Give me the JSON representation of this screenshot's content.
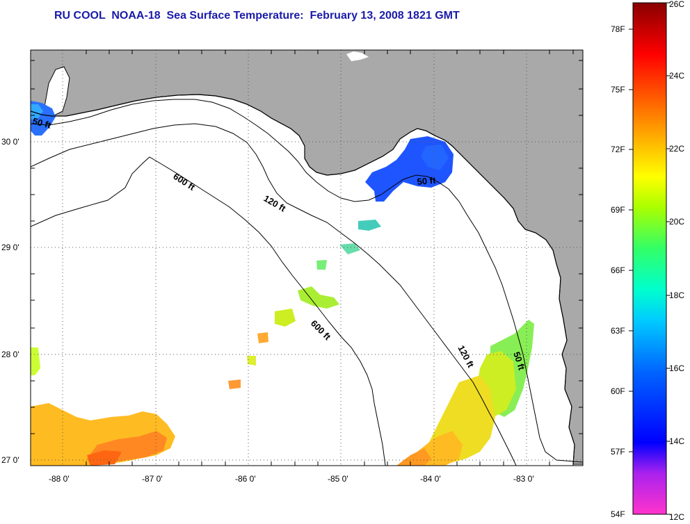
{
  "title": "RU COOL  NOAA-18  Sea Surface Temperature:  February 13, 2008 1821 GMT",
  "map": {
    "lon_range": [
      -88.35,
      -82.5
    ],
    "lat_range": [
      26.93,
      30.9
    ],
    "lon_ticks": [
      {
        "value": -88,
        "label": "-88 0'"
      },
      {
        "value": -87,
        "label": "-87 0'"
      },
      {
        "value": -86,
        "label": "-86 0'"
      },
      {
        "value": -85,
        "label": "-85 0'"
      },
      {
        "value": -84,
        "label": "-84 0'"
      },
      {
        "value": -83,
        "label": "-83 0'"
      }
    ],
    "lat_ticks": [
      {
        "value": 30,
        "label": "30 0'"
      },
      {
        "value": 29,
        "label": "29 0'"
      },
      {
        "value": 28,
        "label": "28 0'"
      },
      {
        "value": 27,
        "label": "27 0'"
      }
    ],
    "land_color": "#a9a9a9",
    "grid": "dotted",
    "contours": [
      {
        "depth_label": "50 ft",
        "label": "50 ft"
      },
      {
        "depth_label": "120 ft",
        "label": "120 ft"
      },
      {
        "depth_label": "600 ft",
        "label": "600 ft"
      }
    ]
  },
  "colorbar": {
    "fahrenheit_labels": [
      "78F",
      "75F",
      "72F",
      "69F",
      "66F",
      "63F",
      "60F",
      "57F",
      "54F"
    ],
    "celsius_labels": [
      "26C",
      "24C",
      "22C",
      "20C",
      "18C",
      "16C",
      "14C",
      "12C"
    ],
    "range_c": [
      12,
      26
    ],
    "colors": [
      "#ff33cc",
      "#aa22ee",
      "#0000ff",
      "#0066ff",
      "#00ccff",
      "#00ffcc",
      "#33ff66",
      "#aaff00",
      "#ffff00",
      "#ffaa00",
      "#ff5500",
      "#ff0000",
      "#880000"
    ]
  }
}
